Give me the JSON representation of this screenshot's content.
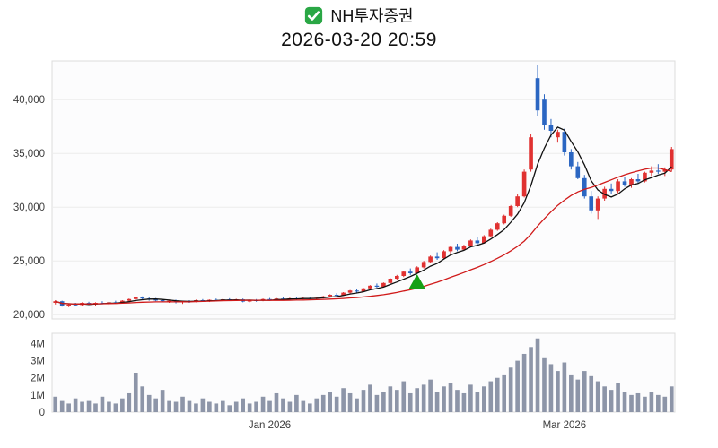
{
  "header": {
    "title": "NH투자증권",
    "datetime": "2026-03-20 20:59",
    "check_icon": "checked",
    "check_color": "#2aa745"
  },
  "chart_data": {
    "type": "candlestick",
    "title": "NH투자증권",
    "subtitle": "2026-03-20 20:59",
    "legend_position": "none",
    "grid": true,
    "price": {
      "ylim": [
        19600,
        43600
      ],
      "yticks": [
        {
          "value": 20000,
          "label": "20,000"
        },
        {
          "value": 25000,
          "label": "25,000"
        },
        {
          "value": 30000,
          "label": "30,000"
        },
        {
          "value": 35000,
          "label": "35,000"
        },
        {
          "value": 40000,
          "label": "40,000"
        }
      ],
      "up_color": "#e03131",
      "down_color": "#2b66c2",
      "ma_short": {
        "period": 5,
        "color": "#111111"
      },
      "ma_long": {
        "period": 20,
        "color": "#d01a1a"
      },
      "marker": {
        "index": 54,
        "price": 23100,
        "shape": "triangle-up",
        "color": "#15a015"
      },
      "candles": [
        [
          21100,
          21350,
          20950,
          21250
        ],
        [
          21250,
          21300,
          20750,
          20850
        ],
        [
          20850,
          21050,
          20700,
          20950
        ],
        [
          20950,
          21100,
          20800,
          20900
        ],
        [
          20900,
          21150,
          20850,
          21100
        ],
        [
          21100,
          21200,
          20900,
          20950
        ],
        [
          20950,
          21150,
          20850,
          21100
        ],
        [
          21100,
          21250,
          21000,
          21050
        ],
        [
          21050,
          21200,
          20900,
          21150
        ],
        [
          21150,
          21300,
          21050,
          21100
        ],
        [
          21100,
          21350,
          21050,
          21300
        ],
        [
          21300,
          21500,
          21200,
          21450
        ],
        [
          21450,
          21650,
          21350,
          21600
        ],
        [
          21600,
          21700,
          21400,
          21500
        ],
        [
          21500,
          21600,
          21300,
          21400
        ],
        [
          21400,
          21550,
          21250,
          21350
        ],
        [
          21350,
          21450,
          21150,
          21250
        ],
        [
          21250,
          21400,
          21100,
          21300
        ],
        [
          21300,
          21400,
          21050,
          21150
        ],
        [
          21150,
          21300,
          21000,
          21250
        ],
        [
          21250,
          21350,
          21100,
          21200
        ],
        [
          21200,
          21400,
          21150,
          21350
        ],
        [
          21350,
          21450,
          21200,
          21300
        ],
        [
          21300,
          21420,
          21180,
          21380
        ],
        [
          21380,
          21500,
          21250,
          21320
        ],
        [
          21320,
          21480,
          21270,
          21430
        ],
        [
          21430,
          21530,
          21300,
          21380
        ],
        [
          21380,
          21480,
          21280,
          21420
        ],
        [
          21420,
          21500,
          21150,
          21220
        ],
        [
          21220,
          21400,
          21150,
          21350
        ],
        [
          21350,
          21450,
          21200,
          21300
        ],
        [
          21300,
          21500,
          21250,
          21450
        ],
        [
          21450,
          21550,
          21300,
          21400
        ],
        [
          21400,
          21550,
          21350,
          21500
        ],
        [
          21500,
          21600,
          21380,
          21430
        ],
        [
          21430,
          21580,
          21350,
          21520
        ],
        [
          21520,
          21620,
          21400,
          21480
        ],
        [
          21480,
          21600,
          21420,
          21560
        ],
        [
          21560,
          21650,
          21450,
          21500
        ],
        [
          21500,
          21620,
          21430,
          21580
        ],
        [
          21580,
          21750,
          21500,
          21700
        ],
        [
          21700,
          21900,
          21600,
          21850
        ],
        [
          21850,
          22000,
          21700,
          21780
        ],
        [
          21780,
          22100,
          21750,
          22050
        ],
        [
          22050,
          22300,
          21950,
          22250
        ],
        [
          22250,
          22400,
          22050,
          22150
        ],
        [
          22150,
          22500,
          22100,
          22450
        ],
        [
          22450,
          22750,
          22350,
          22700
        ],
        [
          22700,
          22900,
          22500,
          22600
        ],
        [
          22600,
          23000,
          22550,
          22950
        ],
        [
          22950,
          23400,
          22900,
          23350
        ],
        [
          23350,
          23700,
          23200,
          23600
        ],
        [
          23600,
          24100,
          23500,
          24000
        ],
        [
          24000,
          24300,
          23700,
          23850
        ],
        [
          23850,
          24500,
          23800,
          24400
        ],
        [
          24400,
          25000,
          24300,
          24900
        ],
        [
          24900,
          25500,
          24800,
          25400
        ],
        [
          25400,
          25800,
          25100,
          25250
        ],
        [
          25250,
          26000,
          25200,
          25900
        ],
        [
          25900,
          26400,
          25700,
          26300
        ],
        [
          26300,
          26600,
          25900,
          26050
        ],
        [
          26050,
          26500,
          25950,
          26400
        ],
        [
          26400,
          27000,
          26300,
          26900
        ],
        [
          26900,
          27200,
          26500,
          26650
        ],
        [
          26650,
          27400,
          26600,
          27300
        ],
        [
          27300,
          28000,
          27200,
          27900
        ],
        [
          27900,
          28600,
          27800,
          28500
        ],
        [
          28500,
          29300,
          28400,
          29200
        ],
        [
          29200,
          30200,
          29100,
          30100
        ],
        [
          30100,
          31200,
          30000,
          31000
        ],
        [
          31000,
          33500,
          30900,
          33300
        ],
        [
          33500,
          36800,
          33300,
          36500
        ],
        [
          42000,
          43200,
          38500,
          39000
        ],
        [
          40000,
          40500,
          37200,
          37600
        ],
        [
          37600,
          38200,
          36500,
          37100
        ],
        [
          36500,
          37200,
          36000,
          37000
        ],
        [
          37000,
          37300,
          34800,
          35100
        ],
        [
          35100,
          35400,
          33500,
          33800
        ],
        [
          33800,
          34200,
          32600,
          32700
        ],
        [
          32700,
          33000,
          30800,
          31000
        ],
        [
          31000,
          31500,
          29400,
          29700
        ],
        [
          29700,
          31000,
          28900,
          30800
        ],
        [
          30800,
          31900,
          30600,
          31700
        ],
        [
          31700,
          32200,
          31200,
          31500
        ],
        [
          31500,
          32600,
          31300,
          32400
        ],
        [
          32400,
          32800,
          31900,
          32100
        ],
        [
          32100,
          32700,
          31800,
          32600
        ],
        [
          32600,
          33100,
          32200,
          32400
        ],
        [
          32400,
          33300,
          32300,
          33200
        ],
        [
          33200,
          33800,
          32900,
          33400
        ],
        [
          33400,
          34000,
          33100,
          33300
        ],
        [
          33300,
          33700,
          32900,
          33500
        ],
        [
          33500,
          35600,
          33300,
          35400
        ]
      ]
    },
    "volume": {
      "ylim": [
        0,
        4600000
      ],
      "yticks": [
        {
          "value": 0,
          "label": "0"
        },
        {
          "value": 1000000,
          "label": "1M"
        },
        {
          "value": 2000000,
          "label": "2M"
        },
        {
          "value": 3000000,
          "label": "3M"
        },
        {
          "value": 4000000,
          "label": "4M"
        }
      ],
      "color": "#8d95a8",
      "values": [
        900000,
        700000,
        500000,
        800000,
        600000,
        700000,
        500000,
        900000,
        600000,
        500000,
        800000,
        1100000,
        2300000,
        1500000,
        1000000,
        800000,
        1300000,
        700000,
        600000,
        900000,
        700000,
        500000,
        800000,
        600000,
        500000,
        700000,
        400000,
        600000,
        800000,
        500000,
        600000,
        900000,
        700000,
        1100000,
        800000,
        600000,
        1000000,
        700000,
        500000,
        800000,
        1000000,
        1200000,
        900000,
        1400000,
        1100000,
        800000,
        1300000,
        1600000,
        1000000,
        1200000,
        1500000,
        1300000,
        1800000,
        1100000,
        1400000,
        1600000,
        1900000,
        1200000,
        1500000,
        1700000,
        1300000,
        1100000,
        1600000,
        1200000,
        1500000,
        1800000,
        2000000,
        2200000,
        2600000,
        3000000,
        3400000,
        3800000,
        4300000,
        3200000,
        2800000,
        2400000,
        2900000,
        2200000,
        1900000,
        2400000,
        2100000,
        1800000,
        1500000,
        1300000,
        1700000,
        1200000,
        1000000,
        1100000,
        900000,
        1200000,
        1000000,
        900000,
        1500000
      ]
    },
    "xaxis": {
      "ticks": [
        {
          "index": 32,
          "label": "Jan 2026"
        },
        {
          "index": 76,
          "label": "Mar 2026"
        }
      ]
    }
  }
}
